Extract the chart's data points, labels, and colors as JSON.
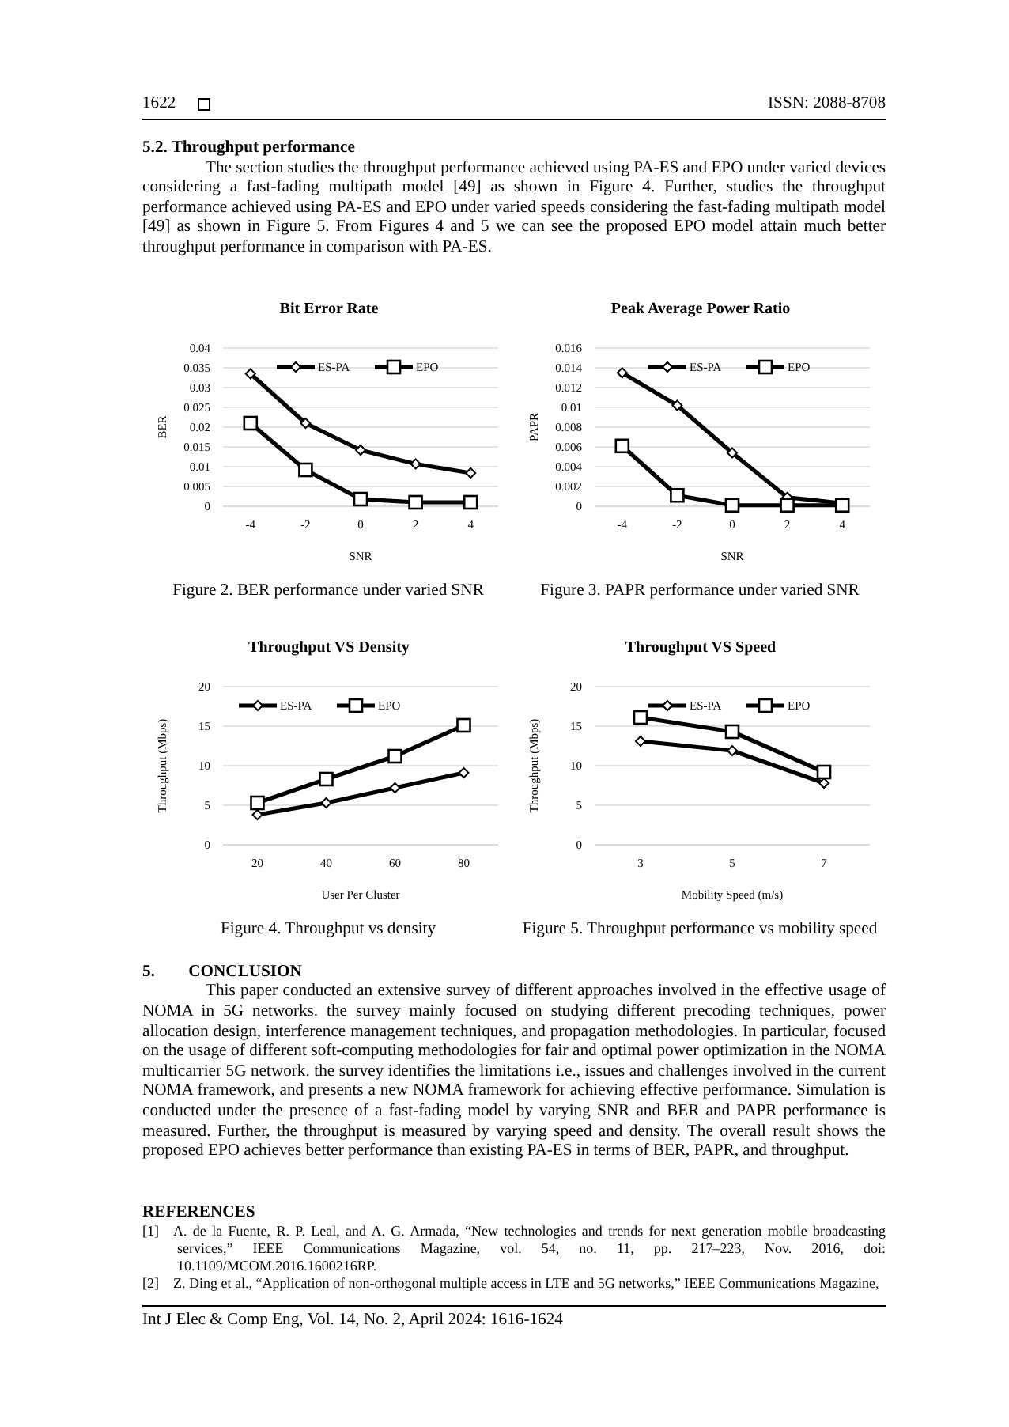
{
  "chart_data": [
    {
      "type": "line",
      "title": "Bit Error Rate",
      "xlabel": "SNR",
      "ylabel": "BER",
      "categories": [
        "-4",
        "-2",
        "0",
        "2",
        "4"
      ],
      "ylim": [
        0,
        0.04
      ],
      "yticks": [
        0,
        0.005,
        0.01,
        0.015,
        0.02,
        0.025,
        0.03,
        0.035,
        0.04
      ],
      "grid": "y",
      "legend": "top right",
      "line_style": "solid",
      "series": [
        {
          "name": "ES-PA",
          "color": "#000000",
          "marker": "diamond",
          "values": [
            0.0335,
            0.021,
            0.0142,
            0.0107,
            0.0084
          ]
        },
        {
          "name": "EPO",
          "color": "#000000",
          "marker": "square",
          "values": [
            0.021,
            0.0092,
            0.0018,
            0.001,
            0.001
          ]
        }
      ],
      "annotations": [
        "1622",
        "ISSN: 2088-8708",
        "5.2. Throughput performance",
        "The section studies the throughput performance achieved using PA-ES and EPO under varied devices considering a fast-fading multipath model [49] as shown in Figure 4. Further, studies the throughput performance achieved using PA-ES and EPO under varied speeds considering the fast-fading multipath model [49] as shown in Figure 5. From Figures 4 and 5 we can see the proposed EPO model attain much better throughput performance in comparison with PA-ES.",
        "Figure 2. BER performance under varied SNR"
      ]
    },
    {
      "type": "line",
      "title": "Peak Average Power Ratio",
      "xlabel": "SNR",
      "ylabel": "PAPR",
      "categories": [
        "-4",
        "-2",
        "0",
        "2",
        "4"
      ],
      "ylim": [
        0,
        0.016
      ],
      "yticks": [
        0,
        0.002,
        0.004,
        0.006,
        0.008,
        0.01,
        0.012,
        0.014,
        0.016
      ],
      "grid": "y",
      "legend": "top right",
      "line_style": "solid",
      "series": [
        {
          "name": "ES-PA",
          "color": "#000000",
          "marker": "diamond",
          "values": [
            0.0135,
            0.0102,
            0.0054,
            0.0009,
            0.0003
          ]
        },
        {
          "name": "EPO",
          "color": "#000000",
          "marker": "square",
          "values": [
            0.0061,
            0.0011,
            0.0001,
            0.0001,
            0.0001
          ]
        }
      ],
      "annotations": [
        "Figure 3. PAPR performance under varied SNR"
      ]
    },
    {
      "type": "line",
      "title": "Throughput VS Density",
      "xlabel": "User Per Cluster",
      "ylabel": "Throughput (Mbps)",
      "categories": [
        "20",
        "40",
        "60",
        "80"
      ],
      "ylim": [
        0,
        20
      ],
      "yticks": [
        0,
        5,
        10,
        15,
        20
      ],
      "grid": "y",
      "legend": "top left",
      "line_style": "solid",
      "series": [
        {
          "name": "ES-PA",
          "color": "#000000",
          "marker": "diamond",
          "values": [
            3.8,
            5.3,
            7.2,
            9.1
          ]
        },
        {
          "name": "EPO",
          "color": "#000000",
          "marker": "square",
          "values": [
            5.3,
            8.3,
            11.2,
            15.1
          ]
        }
      ],
      "annotations": [
        "Figure 4. Throughput vs density"
      ]
    },
    {
      "type": "line",
      "title": "Throughput VS Speed",
      "xlabel": "Mobility Speed (m/s)",
      "ylabel": "Throughput (Mbps)",
      "categories": [
        "3",
        "5",
        "7"
      ],
      "ylim": [
        0,
        20
      ],
      "yticks": [
        0,
        5,
        10,
        15,
        20
      ],
      "grid": "y",
      "legend": "top right",
      "line_style": "solid",
      "series": [
        {
          "name": "ES-PA",
          "color": "#000000",
          "marker": "diamond",
          "values": [
            13.1,
            11.9,
            7.8
          ]
        },
        {
          "name": "EPO",
          "color": "#000000",
          "marker": "square",
          "values": [
            16.1,
            14.3,
            9.2
          ]
        }
      ],
      "annotations": [
        "Figure 5. Throughput performance vs mobility speed",
        "5.  CONCLUSION",
        "This paper conducted an extensive survey of different approaches involved in the effective usage of NOMA in 5G networks. the survey mainly focused on studying different precoding techniques, power allocation design, interference management techniques, and propagation methodologies. In particular, focused on the usage of different soft-computing methodologies for fair and optimal power optimization in the NOMA multicarrier 5G network. the survey identifies the limitations i.e., issues and challenges involved in the current NOMA framework, and presents a new NOMA framework for achieving effective performance. Simulation is conducted under the presence of a fast-fading model by varying SNR and BER and PAPR performance is measured. Further, the throughput is measured by varying speed and density. The overall result shows the proposed EPO achieves better performance than existing PA-ES in terms of BER, PAPR, and throughput.",
        "REFERENCES",
        "[1] A. de la Fuente, R. P. Leal, and A. G. Armada, “New technologies and trends for next generation mobile broadcasting services,” IEEE Communications Magazine, vol. 54, no. 11, pp. 217–223, Nov. 2016, doi: 10.1109/MCOM.2016.1600216RP.",
        "[2] Z. Ding et al., “Application of non-orthogonal multiple access in LTE and 5G networks,” IEEE Communications Magazine,",
        "Int J Elec & Comp Eng, Vol. 14, No. 2, April 2024: 1616-1624"
      ]
    }
  ]
}
